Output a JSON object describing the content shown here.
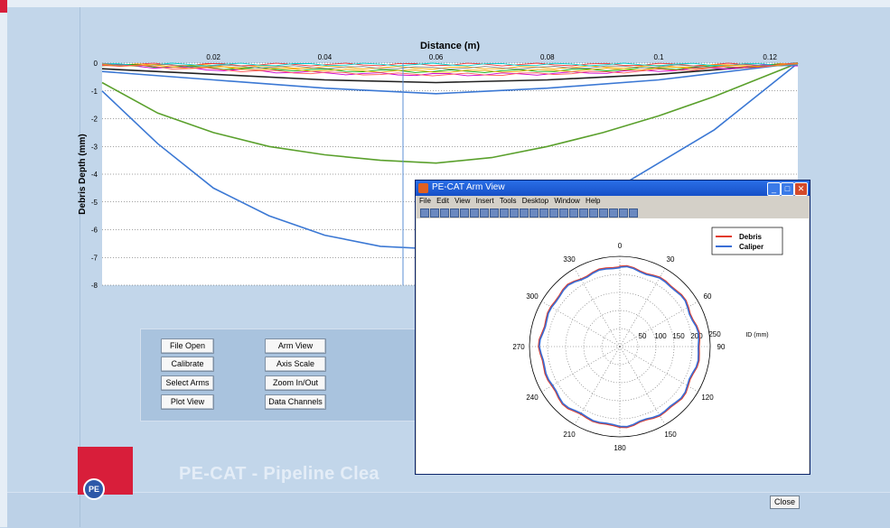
{
  "main_plot": {
    "xlabel": "Distance (m)",
    "ylabel": "Debris Depth (mm)",
    "x_ticks": [
      "0.02",
      "0.04",
      "0.06",
      "0.08",
      "0.1",
      "0.12"
    ],
    "y_ticks": [
      "0",
      "-1",
      "-2",
      "-3",
      "-4",
      "-5",
      "-6",
      "-7",
      "-8"
    ]
  },
  "buttons": {
    "file_open": "File Open",
    "calibrate": "Calibrate",
    "select_arms": "Select Arms",
    "plot_view": "Plot View",
    "arm_view": "Arm View",
    "axis_scale": "Axis Scale",
    "zoom": "Zoom In/Out",
    "data_channels": "Data Channels"
  },
  "app_title": "PE-CAT - Pipeline Clea",
  "logo_text": "PE",
  "arm_window": {
    "title": "PE-CAT Arm View",
    "menu": [
      "File",
      "Edit",
      "View",
      "Insert",
      "Tools",
      "Desktop",
      "Window",
      "Help"
    ],
    "angles": [
      "0",
      "30",
      "60",
      "90",
      "120",
      "150",
      "180",
      "210",
      "240",
      "270",
      "300",
      "330"
    ],
    "radial_ticks": [
      "50",
      "100",
      "150",
      "200",
      "250"
    ],
    "radial_label": "ID (mm)",
    "legend": [
      "Debris",
      "Caliper"
    ],
    "close_label": "Close"
  },
  "chart_data": {
    "type": "line",
    "xlabel": "Distance (m)",
    "ylabel": "Debris Depth (mm)",
    "xlim": [
      0,
      0.125
    ],
    "ylim": [
      -8,
      0
    ],
    "series": [
      {
        "x": [
          0,
          0.01,
          0.02,
          0.03,
          0.04,
          0.05,
          0.06,
          0.07,
          0.08,
          0.09,
          0.1,
          0.11,
          0.12,
          0.125
        ],
        "values": [
          -1.0,
          -2.9,
          -4.5,
          -5.5,
          -6.2,
          -6.6,
          -6.7,
          -6.5,
          -5.8,
          -4.8,
          -3.6,
          -2.4,
          -0.8,
          0
        ]
      },
      {
        "x": [
          0,
          0.01,
          0.02,
          0.03,
          0.04,
          0.05,
          0.06,
          0.07,
          0.08,
          0.09,
          0.1,
          0.11,
          0.12,
          0.125
        ],
        "values": [
          -0.7,
          -1.8,
          -2.5,
          -3.0,
          -3.3,
          -3.5,
          -3.6,
          -3.4,
          -3.0,
          -2.5,
          -1.9,
          -1.2,
          -0.4,
          0
        ]
      },
      {
        "x": [
          0,
          0.02,
          0.04,
          0.06,
          0.08,
          0.1,
          0.125
        ],
        "values": [
          -0.3,
          -0.6,
          -0.9,
          -1.1,
          -0.9,
          -0.6,
          0
        ]
      },
      {
        "x": [
          0,
          0.02,
          0.04,
          0.06,
          0.08,
          0.1,
          0.125
        ],
        "values": [
          -0.2,
          -0.4,
          -0.6,
          -0.7,
          -0.6,
          -0.4,
          0
        ]
      }
    ]
  }
}
